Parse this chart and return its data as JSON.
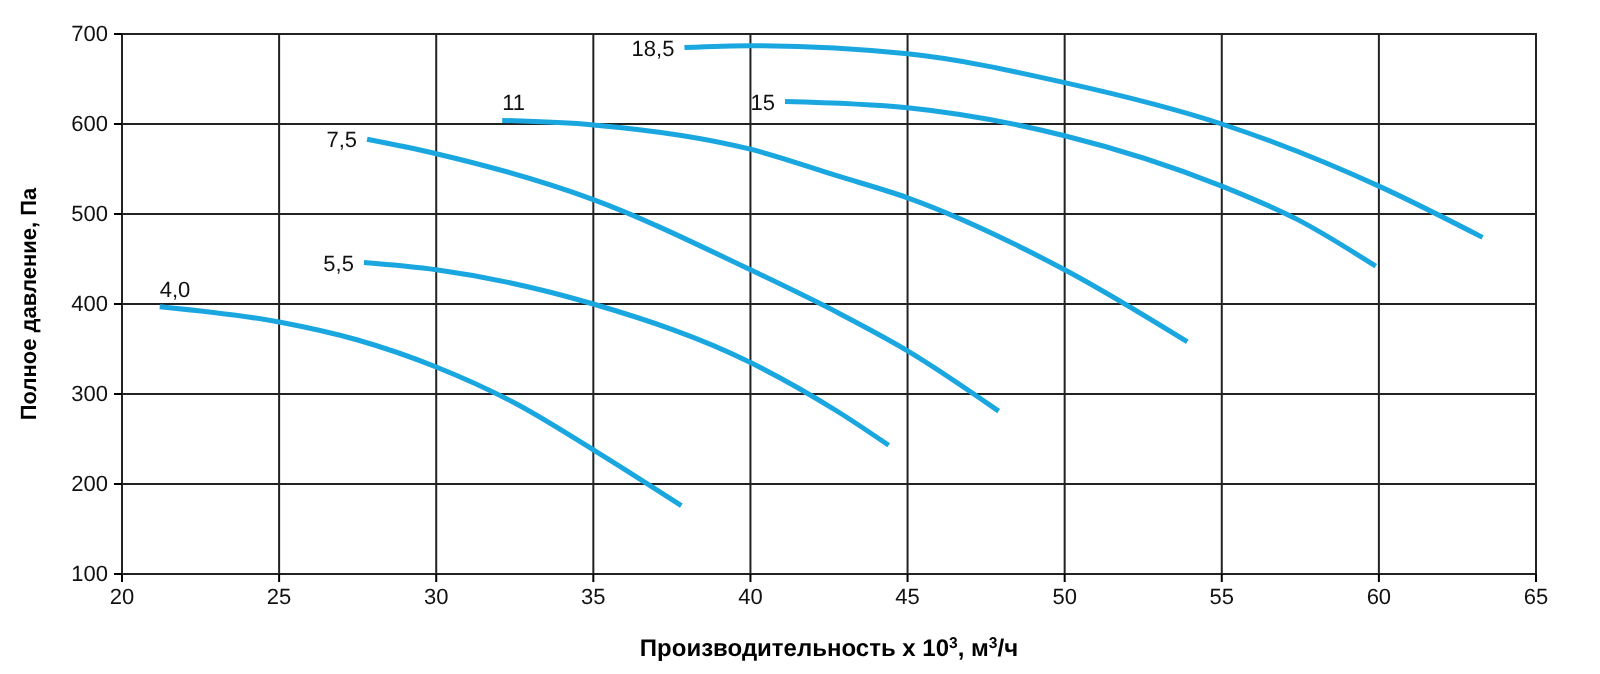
{
  "chart_data": {
    "type": "line",
    "xlabel": "Производительность x 10$^{3}$, м$^{3}$/ч",
    "ylabel": "Полное давление, Па",
    "xlim": [
      20,
      65
    ],
    "xticks": [
      20,
      25,
      30,
      35,
      40,
      45,
      50,
      55,
      60,
      65
    ],
    "ylim": [
      100,
      700
    ],
    "yticks": [
      100,
      200,
      300,
      400,
      500,
      600,
      700
    ],
    "grid": true,
    "marker": "none",
    "line_style": "solid",
    "series": [
      {
        "name": "4,0",
        "color": "#1aa7e0",
        "x": [
          21.2,
          25,
          27.5,
          30,
          32.5,
          35,
          37.8
        ],
        "values": [
          397,
          380,
          360,
          330,
          290,
          238,
          176
        ]
      },
      {
        "name": "5,5",
        "color": "#1aa7e0",
        "x": [
          27.7,
          30,
          35,
          40,
          42.8,
          44.4
        ],
        "values": [
          446,
          438,
          400,
          335,
          280,
          243
        ]
      },
      {
        "name": "7,5",
        "color": "#1aa7e0",
        "x": [
          27.8,
          30,
          35,
          40,
          42.8,
          45,
          47.9
        ],
        "values": [
          583,
          567,
          516,
          438,
          390,
          348,
          281
        ]
      },
      {
        "name": "11",
        "color": "#1aa7e0",
        "x": [
          32.1,
          35,
          40,
          42.8,
          45,
          50,
          53.9
        ],
        "values": [
          604,
          599,
          572,
          542,
          518,
          438,
          358
        ]
      },
      {
        "name": "15",
        "color": "#1aa7e0",
        "x": [
          41.1,
          45,
          50,
          55,
          57.4,
          59.9
        ],
        "values": [
          625,
          618,
          587,
          531,
          494,
          442
        ]
      },
      {
        "name": "18,5",
        "color": "#1aa7e0",
        "x": [
          37.9,
          40,
          45,
          50,
          55,
          60,
          63.3
        ],
        "values": [
          685,
          687,
          678,
          646,
          600,
          531,
          474
        ]
      }
    ]
  }
}
